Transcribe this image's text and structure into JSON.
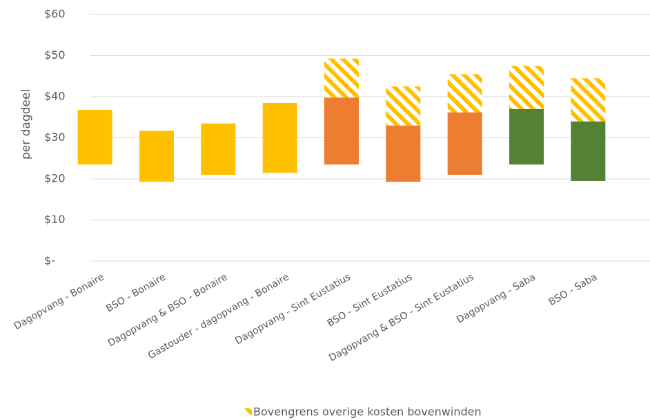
{
  "chart_data": {
    "type": "floating_bar",
    "ylabel": "per dagdeel",
    "categories": [
      "Dagopvang - Bonaire",
      "BSO - Bonaire",
      "Dagopvang & BSO - Bonaire",
      "Gastouder - dagopvang - Bonaire",
      "Dagopvang - Sint Eustatius",
      "BSO - Sint Eustatius",
      "Dagopvang & BSO - Sint Eustatius",
      "Dagopvang - Saba",
      "BSO - Saba"
    ],
    "lower": [
      23.5,
      19.3,
      21,
      21.5,
      23.5,
      19.3,
      21,
      23.5,
      19.5
    ],
    "values": [
      13.3,
      12.4,
      12.5,
      17,
      16.3,
      13.7,
      15.2,
      13.5,
      14.5
    ],
    "colors": [
      "#ffc000",
      "#ffc000",
      "#ffc000",
      "#ffc000",
      "#ed7d31",
      "#ed7d31",
      "#ed7d31",
      "#548235",
      "#548235"
    ],
    "series": [
      {
        "name": "Bovengrens overige kosten bovenwinden",
        "color": "#ffc000",
        "pattern": "hatch",
        "values": [
          null,
          null,
          null,
          null,
          9.5,
          9.5,
          9.3,
          10.5,
          10.5
        ]
      }
    ],
    "ylim": [
      0,
      60
    ],
    "yticks": [
      {
        "value": 0,
        "label": "$-"
      },
      {
        "value": 10,
        "label": "$10"
      },
      {
        "value": 20,
        "label": "$20"
      },
      {
        "value": 30,
        "label": "$30"
      },
      {
        "value": 40,
        "label": "$40"
      },
      {
        "value": 50,
        "label": "$50"
      },
      {
        "value": 60,
        "label": "$60"
      }
    ],
    "grid": true,
    "legend": "bottom"
  }
}
